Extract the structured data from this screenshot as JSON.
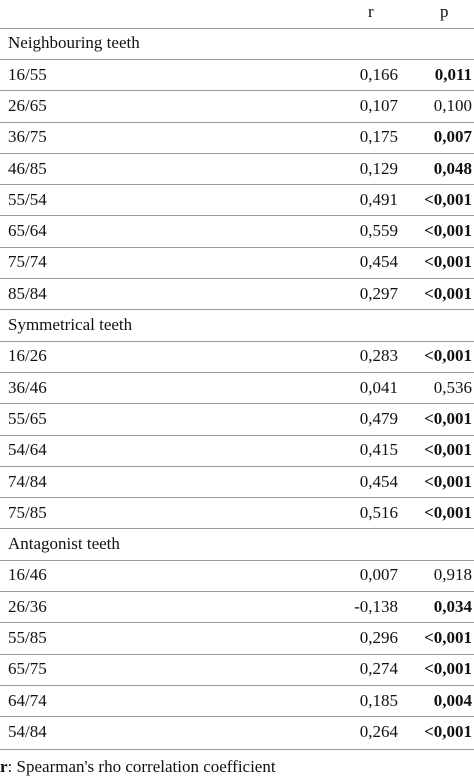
{
  "header": {
    "r": "r",
    "p": "p"
  },
  "sections": [
    {
      "title": "Neighbouring teeth",
      "rows": [
        {
          "label": "16/55",
          "r": "0,166",
          "p": "0,011",
          "bold": true
        },
        {
          "label": "26/65",
          "r": "0,107",
          "p": "0,100",
          "bold": false
        },
        {
          "label": "36/75",
          "r": "0,175",
          "p": "0,007",
          "bold": true
        },
        {
          "label": "46/85",
          "r": "0,129",
          "p": "0,048",
          "bold": true
        },
        {
          "label": "55/54",
          "r": "0,491",
          "p": "<0,001",
          "bold": true
        },
        {
          "label": "65/64",
          "r": "0,559",
          "p": "<0,001",
          "bold": true
        },
        {
          "label": "75/74",
          "r": "0,454",
          "p": "<0,001",
          "bold": true
        },
        {
          "label": "85/84",
          "r": "0,297",
          "p": "<0,001",
          "bold": true
        }
      ]
    },
    {
      "title": "Symmetrical teeth",
      "rows": [
        {
          "label": "16/26",
          "r": "0,283",
          "p": "<0,001",
          "bold": true
        },
        {
          "label": "36/46",
          "r": "0,041",
          "p": "0,536",
          "bold": false
        },
        {
          "label": "55/65",
          "r": "0,479",
          "p": "<0,001",
          "bold": true
        },
        {
          "label": "54/64",
          "r": "0,415",
          "p": "<0,001",
          "bold": true
        },
        {
          "label": "74/84",
          "r": "0,454",
          "p": "<0,001",
          "bold": true
        },
        {
          "label": "75/85",
          "r": "0,516",
          "p": "<0,001",
          "bold": true
        }
      ]
    },
    {
      "title": "Antagonist teeth",
      "rows": [
        {
          "label": "16/46",
          "r": "0,007",
          "p": "0,918",
          "bold": false
        },
        {
          "label": "26/36",
          "r": "-0,138",
          "p": "0,034",
          "bold": true
        },
        {
          "label": "55/85",
          "r": "0,296",
          "p": "<0,001",
          "bold": true
        },
        {
          "label": "65/75",
          "r": "0,274",
          "p": "<0,001",
          "bold": true
        },
        {
          "label": "64/74",
          "r": "0,185",
          "p": "0,004",
          "bold": true
        },
        {
          "label": "54/84",
          "r": "0,264",
          "p": "<0,001",
          "bold": true
        }
      ]
    }
  ],
  "footnote": {
    "symbol": "r",
    "text": ": Spearman's rho correlation coefficient"
  }
}
